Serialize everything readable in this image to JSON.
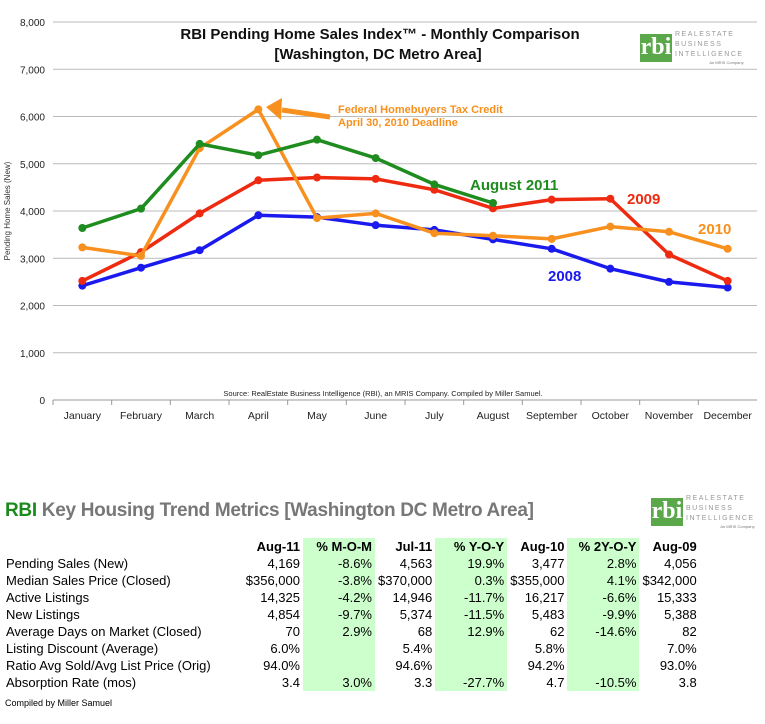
{
  "chart_data": {
    "type": "line",
    "title": "RBI Pending Home Sales Index™ - Monthly Comparison",
    "subtitle": "[Washington, DC Metro Area]",
    "ylabel": "Pending Home Sales (New)",
    "xlabel": "",
    "ylim": [
      0,
      8000
    ],
    "yticks": [
      "0",
      "1,000",
      "2,000",
      "3,000",
      "4,000",
      "5,000",
      "6,000",
      "7,000",
      "8,000"
    ],
    "grid": true,
    "categories": [
      "January",
      "February",
      "March",
      "April",
      "May",
      "June",
      "July",
      "August",
      "September",
      "October",
      "November",
      "December"
    ],
    "series": [
      {
        "name": "2008",
        "label": "2008",
        "color": "#1a1aee",
        "values": [
          2420,
          2800,
          3170,
          3910,
          3870,
          3700,
          3600,
          3400,
          3200,
          2780,
          2500,
          2380
        ]
      },
      {
        "name": "2009",
        "label": "2009",
        "color": "#ee2a10",
        "values": [
          2520,
          3130,
          3950,
          4650,
          4710,
          4680,
          4450,
          4056,
          4240,
          4260,
          3080,
          2520
        ]
      },
      {
        "name": "2010",
        "label": "2010",
        "color": "#f7901e",
        "values": [
          3230,
          3050,
          5330,
          6150,
          3850,
          3950,
          3530,
          3477,
          3410,
          3670,
          3560,
          3200
        ]
      },
      {
        "name": "2011",
        "label": "August 2011",
        "color": "#1e8c1e",
        "values": [
          3640,
          4050,
          5420,
          5180,
          5510,
          5120,
          4563,
          4169,
          null,
          null,
          null,
          null
        ]
      }
    ],
    "annotation": {
      "line1": "Federal Homebuyers Tax Credit",
      "line2": "April 30, 2010 Deadline",
      "color": "#f7901e"
    },
    "source": "Source: RealEstate Business Intelligence (RBI), an MRIS Company.  Compiled by Miller Samuel."
  },
  "logo": {
    "mark": "rbi",
    "line1": "REALESTATE",
    "line2": "BUSINESS",
    "line3": "INTELLIGENCE",
    "sub": "An MRIS Company"
  },
  "table": {
    "title_prefix": "RBI",
    "title_rest": " Key Housing Trend Metrics [Washington DC Metro Area]",
    "headers": [
      "Aug-11",
      "% M-O-M",
      "Jul-11",
      "% Y-O-Y",
      "Aug-10",
      "% 2Y-O-Y",
      "Aug-09"
    ],
    "rows": [
      {
        "label": "Pending Sales (New)",
        "cells": [
          "4,169",
          "-8.6%",
          "4,563",
          "19.9%",
          "3,477",
          "2.8%",
          "4,056"
        ]
      },
      {
        "label": "Median Sales Price (Closed)",
        "cells": [
          "$356,000",
          "-3.8%",
          "$370,000",
          "0.3%",
          "$355,000",
          "4.1%",
          "$342,000"
        ]
      },
      {
        "label": "Active Listings",
        "cells": [
          "14,325",
          "-4.2%",
          "14,946",
          "-11.7%",
          "16,217",
          "-6.6%",
          "15,333"
        ]
      },
      {
        "label": "New Listings",
        "cells": [
          "4,854",
          "-9.7%",
          "5,374",
          "-11.5%",
          "5,483",
          "-9.9%",
          "5,388"
        ]
      },
      {
        "label": "Average Days on Market (Closed)",
        "cells": [
          "70",
          "2.9%",
          "68",
          "12.9%",
          "62",
          "-14.6%",
          "82"
        ]
      },
      {
        "label": "Listing Discount (Average)",
        "cells": [
          "6.0%",
          "",
          "5.4%",
          "",
          "5.8%",
          "",
          "7.0%"
        ]
      },
      {
        "label": "Ratio Avg Sold/Avg List Price (Orig)",
        "cells": [
          "94.0%",
          "",
          "94.6%",
          "",
          "94.2%",
          "",
          "93.0%"
        ]
      },
      {
        "label": "Absorption Rate (mos)",
        "cells": [
          "3.4",
          "3.0%",
          "3.3",
          "-27.7%",
          "4.7",
          "-10.5%",
          "3.8"
        ]
      }
    ],
    "footer": "Compiled by Miller Samuel"
  }
}
